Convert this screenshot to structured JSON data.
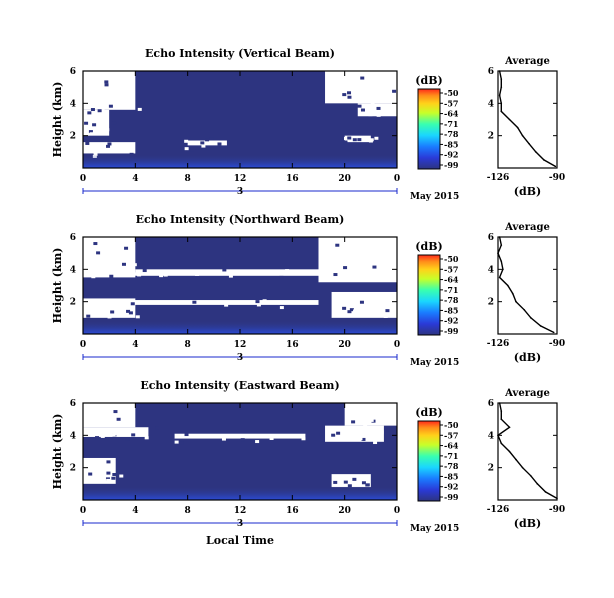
{
  "chart_data": [
    {
      "type": "heatmap",
      "title": "Echo Intensity (Vertical Beam)",
      "ylabel": "Height (km)",
      "y_ticks": [
        "6",
        "4",
        "2"
      ],
      "x_ticks": [
        "0",
        "4",
        "8",
        "12",
        "16",
        "20",
        "0"
      ],
      "x_range": [
        0,
        24
      ],
      "y_range": [
        0,
        6
      ],
      "day_label": "3",
      "date_label": "May 2015",
      "colorbar": {
        "unit": "(dB)",
        "ticks": [
          "-50",
          "-57",
          "-64",
          "-71",
          "-78",
          "-85",
          "-92",
          "-99"
        ],
        "range": [
          -99,
          -50
        ]
      },
      "white_regions": [
        {
          "x": [
            0,
            4
          ],
          "y": [
            3.6,
            6
          ]
        },
        {
          "x": [
            0,
            2
          ],
          "y": [
            2.0,
            3.6
          ]
        },
        {
          "x": [
            18.5,
            24
          ],
          "y": [
            4.0,
            6
          ]
        },
        {
          "x": [
            21,
            24
          ],
          "y": [
            3.2,
            4.0
          ]
        },
        {
          "x": [
            20,
            22
          ],
          "y": [
            1.6,
            2.0
          ]
        },
        {
          "x": [
            0,
            4
          ],
          "y": [
            0.9,
            1.6
          ]
        },
        {
          "x": [
            8,
            11
          ],
          "y": [
            1.4,
            1.7
          ]
        }
      ],
      "average_profile": {
        "title": "Average",
        "xlabel": "(dB)",
        "x_ticks": [
          "-126",
          "-90"
        ],
        "y_ticks": [
          "6",
          "4",
          "2"
        ],
        "x_range": [
          -126,
          -90
        ],
        "y_range": [
          0,
          6
        ],
        "height": [
          6.0,
          5.5,
          5.0,
          4.5,
          4.0,
          3.5,
          3.0,
          2.5,
          2.0,
          1.5,
          1.0,
          0.5,
          0.1
        ],
        "value": [
          -125,
          -124,
          -124,
          -125,
          -124,
          -124,
          -119,
          -114,
          -111,
          -107,
          -103,
          -98,
          -91
        ]
      }
    },
    {
      "type": "heatmap",
      "title": "Echo Intensity (Northward Beam)",
      "ylabel": "Height (km)",
      "y_ticks": [
        "6",
        "4",
        "2"
      ],
      "x_ticks": [
        "0",
        "4",
        "8",
        "12",
        "16",
        "20",
        "0"
      ],
      "x_range": [
        0,
        24
      ],
      "y_range": [
        0,
        6
      ],
      "day_label": "3",
      "date_label": "May 2015",
      "colorbar": {
        "unit": "(dB)",
        "ticks": [
          "-50",
          "-57",
          "-64",
          "-71",
          "-78",
          "-85",
          "-92",
          "-99"
        ],
        "range": [
          -99,
          -50
        ]
      },
      "white_regions": [
        {
          "x": [
            0,
            4
          ],
          "y": [
            3.5,
            6
          ]
        },
        {
          "x": [
            4,
            18
          ],
          "y": [
            3.6,
            4.0
          ]
        },
        {
          "x": [
            18,
            24
          ],
          "y": [
            3.2,
            6
          ]
        },
        {
          "x": [
            19,
            24
          ],
          "y": [
            1.0,
            2.6
          ]
        },
        {
          "x": [
            0,
            4
          ],
          "y": [
            1.0,
            2.2
          ]
        },
        {
          "x": [
            3,
            18
          ],
          "y": [
            1.8,
            2.1
          ]
        }
      ],
      "average_profile": {
        "title": "Average",
        "xlabel": "(dB)",
        "x_ticks": [
          "-126",
          "-90"
        ],
        "y_ticks": [
          "6",
          "4",
          "2"
        ],
        "x_range": [
          -126,
          -90
        ],
        "y_range": [
          0,
          6
        ],
        "height": [
          6.0,
          5.5,
          5.0,
          4.5,
          4.0,
          3.5,
          3.0,
          2.5,
          2.0,
          1.5,
          1.0,
          0.5,
          0.1
        ],
        "value": [
          -125,
          -124,
          -126,
          -124,
          -123,
          -125,
          -120,
          -117,
          -115,
          -110,
          -106,
          -100,
          -92
        ]
      }
    },
    {
      "type": "heatmap",
      "title": "Echo Intensity (Eastward Beam)",
      "ylabel": "Height (km)",
      "y_ticks": [
        "6",
        "4",
        "2"
      ],
      "x_ticks": [
        "0",
        "4",
        "8",
        "12",
        "16",
        "20",
        "0"
      ],
      "x_range": [
        0,
        24
      ],
      "y_range": [
        0,
        6
      ],
      "day_label": "3",
      "date_label": "May 2015",
      "xlabel": "Local Time",
      "colorbar": {
        "unit": "(dB)",
        "ticks": [
          "-50",
          "-57",
          "-64",
          "-71",
          "-78",
          "-85",
          "-92",
          "-99"
        ],
        "range": [
          -99,
          -50
        ]
      },
      "white_regions": [
        {
          "x": [
            0,
            4
          ],
          "y": [
            4.5,
            6
          ]
        },
        {
          "x": [
            0,
            5
          ],
          "y": [
            3.9,
            4.5
          ]
        },
        {
          "x": [
            7,
            17
          ],
          "y": [
            3.8,
            4.1
          ]
        },
        {
          "x": [
            18.5,
            23
          ],
          "y": [
            3.6,
            4.6
          ]
        },
        {
          "x": [
            20,
            24
          ],
          "y": [
            4.6,
            6
          ]
        },
        {
          "x": [
            0,
            2.5
          ],
          "y": [
            1.0,
            2.6
          ]
        },
        {
          "x": [
            19,
            22
          ],
          "y": [
            0.8,
            1.6
          ]
        }
      ],
      "average_profile": {
        "title": "Average",
        "xlabel": "(dB)",
        "x_ticks": [
          "-126",
          "-90"
        ],
        "y_ticks": [
          "6",
          "4",
          "2"
        ],
        "x_range": [
          -126,
          -90
        ],
        "y_range": [
          0,
          6
        ],
        "height": [
          6.0,
          5.5,
          5.0,
          4.5,
          4.0,
          3.5,
          3.0,
          2.5,
          2.0,
          1.5,
          1.0,
          0.5,
          0.1
        ],
        "value": [
          -125,
          -124,
          -124,
          -119,
          -126,
          -124,
          -119,
          -115,
          -111,
          -106,
          -102,
          -97,
          -90
        ]
      }
    }
  ],
  "colors": {
    "background_fill": "#2d3480",
    "near_ground_fill": "#2b4cd8",
    "colormap": [
      "#ff2a1a",
      "#ff8c1a",
      "#ffd21a",
      "#c7ff2a",
      "#38ffb0",
      "#1ad6ff",
      "#1a7cff",
      "#2a3ad8",
      "#2d3480"
    ]
  }
}
